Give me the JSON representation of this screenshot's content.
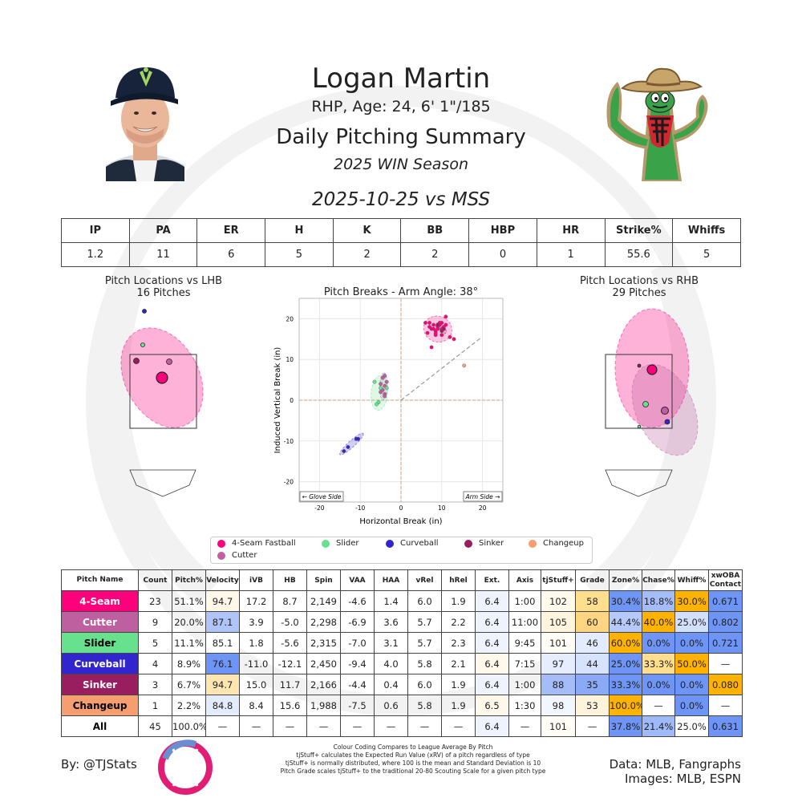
{
  "header": {
    "name": "Logan Martin",
    "bio": "RHP, Age: 24, 6' 1\"/185",
    "title": "Daily Pitching Summary",
    "season": "2025 WIN Season",
    "game": "2025-10-25 vs MSS"
  },
  "summary": {
    "headers": [
      "IP",
      "PA",
      "ER",
      "H",
      "K",
      "BB",
      "HBP",
      "HR",
      "Strike%",
      "Whiffs"
    ],
    "values": [
      "1.2",
      "11",
      "6",
      "5",
      "2",
      "2",
      "0",
      "1",
      "55.6",
      "5"
    ]
  },
  "plots": {
    "lhb_title": "Pitch Locations vs LHB",
    "lhb_count": "16 Pitches",
    "rhb_title": "Pitch Locations vs RHB",
    "rhb_count": "29 Pitches",
    "glove_side": "← Glove Side",
    "arm_side": "Arm Side →"
  },
  "chart_data": {
    "type": "scatter",
    "title": "Pitch Breaks - Arm Angle: 38°",
    "xlabel": "Horizontal Break (in)",
    "ylabel": "Induced Vertical Break (in)",
    "xlim": [
      -25,
      25
    ],
    "ylim": [
      -25,
      25
    ],
    "xticks": [
      -20,
      -10,
      0,
      10,
      20
    ],
    "yticks": [
      -20,
      -10,
      0,
      10,
      20
    ],
    "arm_angle_deg": 38,
    "series": [
      {
        "name": "4-Seam Fastball",
        "color": "#FF007D",
        "x": [
          6,
          7,
          7.5,
          8,
          8.5,
          9,
          9.5,
          10,
          10.5,
          11,
          12,
          13,
          6.5,
          7.5,
          8.5,
          9,
          10,
          11,
          7,
          8.5,
          9.5,
          10,
          8
        ],
        "y": [
          19,
          18,
          17.5,
          18.5,
          17,
          18,
          19,
          17.5,
          18,
          20.5,
          15.5,
          15,
          16.5,
          13,
          16,
          17.5,
          19,
          18.5,
          19,
          16.5,
          18.5,
          16,
          17.5
        ]
      },
      {
        "name": "Cutter",
        "color": "#BE5FA0",
        "x": [
          -4,
          -4.5,
          -5,
          -4,
          -3.5,
          -5,
          -4,
          -4.5,
          -4
        ],
        "y": [
          6,
          5.5,
          4,
          3.5,
          4.5,
          2,
          1.5,
          2.5,
          1
        ]
      },
      {
        "name": "Slider",
        "color": "#67E18D",
        "x": [
          -6.5,
          -5.5,
          -6,
          -5,
          -3.5
        ],
        "y": [
          4.5,
          -0.5,
          -1,
          3,
          3
        ]
      },
      {
        "name": "Curveball",
        "color": "#3025CE",
        "x": [
          -14,
          -13,
          -11,
          -10.5
        ],
        "y": [
          -12.5,
          -11.5,
          -9.5,
          -9.5
        ]
      },
      {
        "name": "Sinker",
        "color": "#981E5F",
        "x": [
          9,
          10,
          10.5
        ],
        "y": [
          18.5,
          17,
          17.5
        ]
      },
      {
        "name": "Changeup",
        "color": "#F79E70",
        "x": [
          15.5
        ],
        "y": [
          8.5
        ]
      }
    ]
  },
  "legend": [
    {
      "label": "4-Seam Fastball",
      "color": "#FF007D"
    },
    {
      "label": "Slider",
      "color": "#67E18D"
    },
    {
      "label": "Curveball",
      "color": "#3025CE"
    },
    {
      "label": "Sinker",
      "color": "#981E5F"
    },
    {
      "label": "Changeup",
      "color": "#F79E70"
    },
    {
      "label": "Cutter",
      "color": "#BE5FA0"
    }
  ],
  "pitch_table": {
    "headers": [
      "Pitch Name",
      "Count",
      "Pitch%",
      "Velocity",
      "iVB",
      "HB",
      "Spin",
      "VAA",
      "HAA",
      "vRel",
      "hRel",
      "Ext.",
      "Axis",
      "tjStuff+",
      "Grade",
      "Zone%",
      "Chase%",
      "Whiff%",
      "xwOBA Contact"
    ],
    "rows": [
      {
        "name": "4-Seam",
        "color": "#FF007D",
        "text_color": "#ffffff",
        "cells": [
          "23",
          "51.1%",
          "94.7",
          "17.2",
          "8.7",
          "2,149",
          "-4.6",
          "1.4",
          "6.0",
          "1.9",
          "6.4",
          "1:00",
          "102",
          "58",
          "30.4%",
          "18.8%",
          "30.0%",
          "0.671"
        ],
        "colors": [
          "",
          "",
          "#FFF7E8",
          "",
          "",
          "",
          "",
          "",
          "",
          "",
          "#EEF3FE",
          "",
          "#FFFAEC",
          "#FFDE8E",
          "#6E94F5",
          "#A4BDF9",
          "#FFB300",
          "#6E94F5"
        ]
      },
      {
        "name": "Cutter",
        "color": "#BE5FA0",
        "text_color": "#ffffff",
        "cells": [
          "9",
          "20.0%",
          "87.1",
          "3.9",
          "-5.0",
          "2,298",
          "-6.9",
          "3.6",
          "5.7",
          "2.2",
          "6.4",
          "11:00",
          "105",
          "60",
          "44.4%",
          "40.0%",
          "25.0%",
          "0.802"
        ],
        "colors": [
          "",
          "",
          "#AFC5FA",
          "",
          "",
          "",
          "",
          "",
          "",
          "",
          "#EEF3FE",
          "",
          "#FFF5DE",
          "#FFD581",
          "#B5CAFB",
          "#FFB300",
          "#D3E0FD",
          "#6E94F5"
        ]
      },
      {
        "name": "Slider",
        "color": "#67E18D",
        "text_color": "#000000",
        "cells": [
          "5",
          "11.1%",
          "85.1",
          "1.8",
          "-5.6",
          "2,315",
          "-7.0",
          "3.1",
          "5.7",
          "2.3",
          "6.4",
          "9:45",
          "101",
          "46",
          "60.0%",
          "0.0%",
          "0.0%",
          "0.721"
        ],
        "colors": [
          "",
          "",
          "#ffffff",
          "",
          "",
          "",
          "",
          "",
          "",
          "",
          "#EEF3FE",
          "",
          "#FFFDF5",
          "#E3EBFE",
          "#FFB300",
          "#6E94F5",
          "#6E94F5",
          "#6E94F5"
        ]
      },
      {
        "name": "Curveball",
        "color": "#3025CE",
        "text_color": "#ffffff",
        "cells": [
          "4",
          "8.9%",
          "76.1",
          "-11.0",
          "-12.1",
          "2,450",
          "-9.4",
          "4.0",
          "5.8",
          "2.1",
          "6.4",
          "7:15",
          "97",
          "44",
          "25.0%",
          "33.3%",
          "50.0%",
          "—"
        ],
        "colors": [
          "",
          "",
          "#6E94F5",
          "",
          "",
          "",
          "",
          "",
          "",
          "",
          "#FFF9EC",
          "",
          "#E6EDFE",
          "#D7E2FD",
          "#6E94F5",
          "#FFDE8E",
          "#FFB300",
          ""
        ]
      },
      {
        "name": "Sinker",
        "color": "#981E5F",
        "text_color": "#ffffff",
        "cells": [
          "3",
          "6.7%",
          "94.7",
          "15.0",
          "11.7",
          "2,166",
          "-4.4",
          "0.4",
          "6.0",
          "1.9",
          "6.4",
          "1:00",
          "88",
          "35",
          "33.3%",
          "0.0%",
          "0.0%",
          "0.080"
        ],
        "colors": [
          "",
          "",
          "#FFE6B0",
          "",
          "",
          "",
          "",
          "",
          "",
          "",
          "#EEF3FE",
          "",
          "#A4BDF9",
          "#8AA9F7",
          "#6E94F5",
          "#6E94F5",
          "#6E94F5",
          "#FFB300"
        ]
      },
      {
        "name": "Changeup",
        "color": "#F79E70",
        "text_color": "#000000",
        "cells": [
          "1",
          "2.2%",
          "84.8",
          "8.4",
          "15.6",
          "1,988",
          "-7.5",
          "0.6",
          "5.8",
          "1.9",
          "6.5",
          "1:30",
          "98",
          "53",
          "100.0%",
          "—",
          "0.0%",
          "—"
        ],
        "colors": [
          "",
          "",
          "#E3EBFE",
          "",
          "",
          "",
          "",
          "",
          "",
          "",
          "#FFF8EA",
          "",
          "#F2F6FE",
          "#FFF3DC",
          "#FFB300",
          "",
          "#6E94F5",
          ""
        ]
      },
      {
        "name": "All",
        "color": "#ffffff",
        "text_color": "#000000",
        "cells": [
          "45",
          "100.0%",
          "—",
          "—",
          "—",
          "—",
          "—",
          "—",
          "—",
          "—",
          "6.4",
          "—",
          "101",
          "—",
          "37.8%",
          "21.4%",
          "25.0%",
          "0.631"
        ],
        "colors": [
          "",
          "",
          "",
          "",
          "",
          "",
          "",
          "",
          "",
          "",
          "#EEF3FE",
          "",
          "#FFFDF5",
          "",
          "#6E94F5",
          "#9FB9F9",
          "#ffffff",
          "#6E94F5"
        ]
      }
    ]
  },
  "footer": {
    "by": "By: @TJStats",
    "note1": "Colour Coding Compares to League Average By Pitch",
    "note2": "tjStuff+ calculates the Expected Run Value (xRV) of a pitch regardless of type",
    "note3": "tjStuff+ is normally distributed, where 100 is the mean and Standard Deviation is 10",
    "note4": "Pitch Grade scales tjStuff+ to the traditional 20-80 Scouting Scale for a given pitch type",
    "source": "Data: MLB, Fangraphs",
    "images": "Images: MLB, ESPN"
  }
}
